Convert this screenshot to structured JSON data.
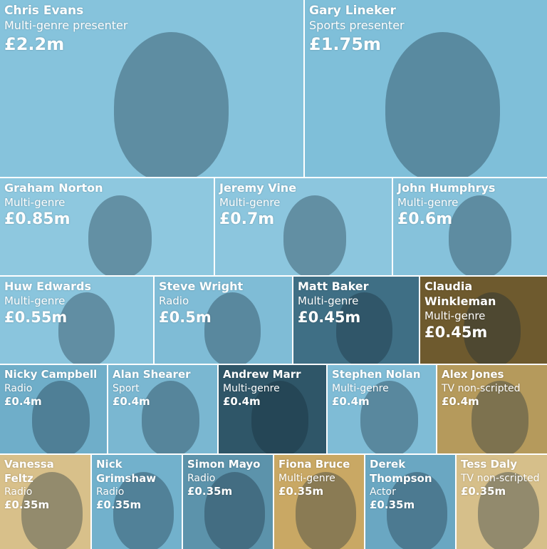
{
  "rows": [
    {
      "tiles": [
        {
          "name": "Chris Evans",
          "role": "Multi-genre presenter",
          "pay": "£2.2m",
          "color": "#86c3dc"
        },
        {
          "name": "Gary Lineker",
          "role": "Sports presenter",
          "pay": "£1.75m",
          "color": "#7fbfd9"
        }
      ]
    },
    {
      "tiles": [
        {
          "name": "Graham Norton",
          "role": "Multi-genre",
          "pay": "£0.85m",
          "color": "#8ec8df"
        },
        {
          "name": "Jeremy Vine",
          "role": "Multi-genre",
          "pay": "£0.7m",
          "color": "#8cc6de"
        },
        {
          "name": "John Humphrys",
          "role": "Multi-genre",
          "pay": "£0.6m",
          "color": "#86c2db"
        }
      ]
    },
    {
      "tiles": [
        {
          "name": "Huw Edwards",
          "role": "Multi-genre",
          "pay": "£0.55m",
          "color": "#8ac5dd"
        },
        {
          "name": "Steve Wright",
          "role": "Radio",
          "pay": "£0.5m",
          "color": "#7fbcd6"
        },
        {
          "name": "Matt Baker",
          "role": "Multi-genre",
          "pay": "£0.45m",
          "color": "#3f6f85"
        },
        {
          "name": "Claudia Winkleman",
          "role": "Multi-genre",
          "pay": "£0.45m",
          "color": "#6e5a2e"
        }
      ]
    },
    {
      "tiles": [
        {
          "name": "Nicky Campbell",
          "role": "Radio",
          "pay": "£0.4m",
          "color": "#6faec9"
        },
        {
          "name": "Alan Shearer",
          "role": "Sport",
          "pay": "£0.4m",
          "color": "#7ab7d1"
        },
        {
          "name": "Andrew Marr",
          "role": "Multi-genre",
          "pay": "£0.4m",
          "color": "#2f5668"
        },
        {
          "name": "Stephen Nolan",
          "role": "Multi-genre",
          "pay": "£0.4m",
          "color": "#7fbcd6"
        },
        {
          "name": "Alex Jones",
          "role": "TV non-scripted",
          "pay": "£0.4m",
          "color": "#b59a5c"
        }
      ]
    },
    {
      "tiles": [
        {
          "name": "Vanessa Feltz",
          "role": "Radio",
          "pay": "£0.35m",
          "color": "#d8c08a"
        },
        {
          "name": "Nick Grimshaw",
          "role": "Radio",
          "pay": "£0.35m",
          "color": "#72b1cc"
        },
        {
          "name": "Simon Mayo",
          "role": "Radio",
          "pay": "£0.35m",
          "color": "#5c93ab"
        },
        {
          "name": "Fiona Bruce",
          "role": "Multi-genre",
          "pay": "£0.35m",
          "color": "#c9a864"
        },
        {
          "name": "Derek Thompson",
          "role": "Actor",
          "pay": "£0.35m",
          "color": "#6aa7c2"
        },
        {
          "name": "Tess Daly",
          "role": "TV non-scripted",
          "pay": "£0.35m",
          "color": "#d6bf8a"
        }
      ]
    }
  ]
}
